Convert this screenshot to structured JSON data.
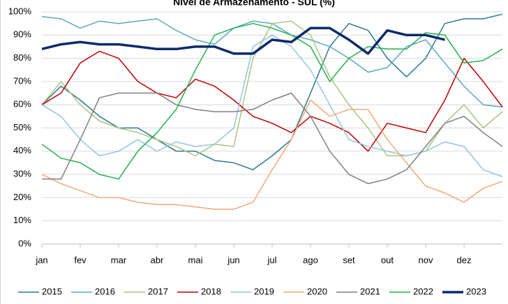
{
  "chart_data": {
    "type": "line",
    "title": "Nível de Armazenamento - SUL (%)",
    "x": [
      0,
      0.5,
      1,
      1.5,
      2,
      2.5,
      3,
      3.5,
      4,
      4.5,
      5,
      5.5,
      6,
      6.5,
      7,
      7.5,
      8,
      8.5,
      9,
      9.5,
      10,
      10.5,
      11,
      11.5,
      12
    ],
    "xlim": [
      0,
      12
    ],
    "xticks": [
      {
        "value": 0,
        "label": "jan"
      },
      {
        "value": 1,
        "label": "fev"
      },
      {
        "value": 2,
        "label": "mar"
      },
      {
        "value": 3,
        "label": "abr"
      },
      {
        "value": 4,
        "label": "mai"
      },
      {
        "value": 5,
        "label": "jun"
      },
      {
        "value": 6,
        "label": "jul"
      },
      {
        "value": 7,
        "label": "ago"
      },
      {
        "value": 8,
        "label": "set"
      },
      {
        "value": 9,
        "label": "out"
      },
      {
        "value": 10,
        "label": "nov"
      },
      {
        "value": 11,
        "label": "dez"
      }
    ],
    "ylim": [
      0,
      100
    ],
    "yticks": [
      {
        "value": 0,
        "label": "0%"
      },
      {
        "value": 10,
        "label": "10%"
      },
      {
        "value": 20,
        "label": "20%"
      },
      {
        "value": 30,
        "label": "30%"
      },
      {
        "value": 40,
        "label": "40%"
      },
      {
        "value": 50,
        "label": "50%"
      },
      {
        "value": 60,
        "label": "60%"
      },
      {
        "value": 70,
        "label": "70%"
      },
      {
        "value": 80,
        "label": "80%"
      },
      {
        "value": 90,
        "label": "90%"
      },
      {
        "value": 100,
        "label": "100%"
      }
    ],
    "grid": true,
    "legend": "bottom",
    "series": [
      {
        "name": "2015",
        "color": "#2a7896",
        "width": 1.5,
        "values": [
          60,
          68,
          62,
          55,
          50,
          50,
          45,
          40,
          40,
          36,
          35,
          32,
          38,
          45,
          65,
          85,
          95,
          92,
          80,
          72,
          80,
          95,
          97,
          97,
          99
        ]
      },
      {
        "name": "2016",
        "color": "#5ba8c4",
        "width": 1.5,
        "values": [
          98,
          97,
          93,
          96,
          95,
          96,
          97,
          92,
          88,
          86,
          93,
          96,
          95,
          90,
          88,
          85,
          80,
          74,
          76,
          85,
          88,
          78,
          68,
          60,
          59
        ]
      },
      {
        "name": "2017",
        "color": "#a9c47f",
        "width": 1.5,
        "values": [
          60,
          70,
          60,
          53,
          50,
          48,
          45,
          42,
          38,
          43,
          42,
          80,
          95,
          96,
          90,
          72,
          60,
          50,
          38,
          38,
          40,
          52,
          60,
          50,
          57
        ]
      },
      {
        "name": "2018",
        "color": "#c00000",
        "width": 1.5,
        "values": [
          60,
          65,
          78,
          83,
          80,
          70,
          65,
          63,
          71,
          68,
          62,
          55,
          52,
          48,
          55,
          52,
          48,
          40,
          52,
          50,
          48,
          62,
          80,
          70,
          59
        ]
      },
      {
        "name": "2019",
        "color": "#92c5de",
        "width": 1.5,
        "values": [
          60,
          55,
          45,
          38,
          40,
          45,
          40,
          44,
          42,
          43,
          50,
          85,
          90,
          85,
          75,
          60,
          45,
          42,
          40,
          38,
          40,
          44,
          42,
          32,
          29
        ]
      },
      {
        "name": "2020",
        "color": "#f4a878",
        "width": 1.5,
        "values": [
          30,
          26,
          23,
          20,
          20,
          18,
          17,
          17,
          16,
          15,
          15,
          18,
          32,
          45,
          62,
          55,
          58,
          58,
          45,
          35,
          25,
          22,
          18,
          24,
          27
        ]
      },
      {
        "name": "2021",
        "color": "#808080",
        "width": 1.5,
        "values": [
          28,
          28,
          45,
          63,
          65,
          65,
          65,
          60,
          58,
          57,
          57,
          58,
          62,
          65,
          55,
          40,
          30,
          26,
          28,
          32,
          42,
          52,
          55,
          48,
          42
        ]
      },
      {
        "name": "2022",
        "color": "#22b14c",
        "width": 1.5,
        "values": [
          43,
          37,
          35,
          30,
          28,
          40,
          48,
          58,
          75,
          90,
          93,
          95,
          93,
          90,
          85,
          70,
          80,
          85,
          84,
          84,
          91,
          90,
          78,
          79,
          84
        ]
      },
      {
        "name": "2023",
        "color": "#0d2a6b",
        "width": 3.5,
        "values": [
          84,
          86,
          87,
          86,
          86,
          85,
          84,
          84,
          85,
          85,
          82,
          82,
          88,
          87,
          93,
          93,
          88,
          82,
          92,
          90,
          90,
          88,
          null,
          null,
          null
        ]
      }
    ]
  }
}
